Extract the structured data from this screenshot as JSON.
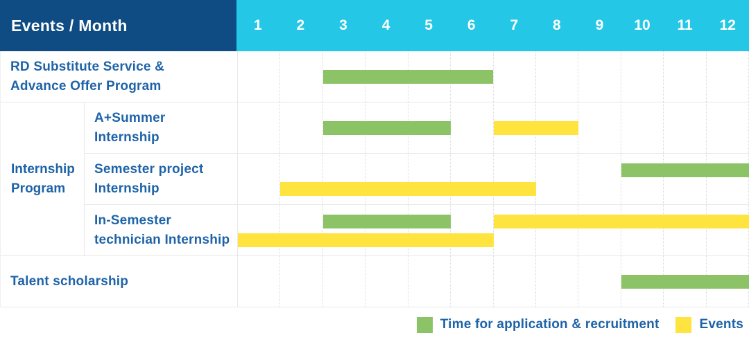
{
  "header": {
    "title": "Events / Month",
    "months": [
      "1",
      "2",
      "3",
      "4",
      "5",
      "6",
      "7",
      "8",
      "9",
      "10",
      "11",
      "12"
    ]
  },
  "rows": [
    {
      "id": "rd-substitute-advance-offer",
      "label_lines": [
        "RD Substitute Service &",
        "Advance Offer Program"
      ],
      "lines": 1,
      "bars": [
        {
          "color": "green",
          "start_month": 3,
          "end_month": 6,
          "track": 0
        }
      ]
    },
    {
      "id": "a-plus-summer-internship",
      "label_lines": [
        "A+Summer",
        "Internship"
      ],
      "lines": 1,
      "bars": [
        {
          "color": "green",
          "start_month": 3,
          "end_month": 5,
          "track": 0
        },
        {
          "color": "yellow",
          "start_month": 7,
          "end_month": 8,
          "track": 0
        }
      ]
    },
    {
      "id": "semester-project-internship",
      "label_lines": [
        "Semester project",
        "Internship"
      ],
      "lines": 2,
      "bars": [
        {
          "color": "green",
          "start_month": 10,
          "end_month": 12,
          "track": 0
        },
        {
          "color": "yellow",
          "start_month": 2,
          "end_month": 7,
          "track": 1
        }
      ]
    },
    {
      "id": "in-semester-technician-internship",
      "label_lines": [
        "In-Semester",
        "technician Internship"
      ],
      "lines": 2,
      "bars": [
        {
          "color": "green",
          "start_month": 3,
          "end_month": 5,
          "track": 0
        },
        {
          "color": "yellow",
          "start_month": 7,
          "end_month": 12,
          "track": 0
        },
        {
          "color": "yellow",
          "start_month": 1,
          "end_month": 6,
          "track": 1
        }
      ]
    },
    {
      "id": "talent-scholarship",
      "label_lines": [
        "Talent scholarship"
      ],
      "lines": 1,
      "bars": [
        {
          "color": "green",
          "start_month": 10,
          "end_month": 12,
          "track": 0
        }
      ]
    }
  ],
  "group": {
    "label_lines": [
      "Internship",
      "Program"
    ],
    "row_ids": [
      "a-plus-summer-internship",
      "semester-project-internship",
      "in-semester-technician-internship"
    ]
  },
  "legend": {
    "items": [
      {
        "label": "Time for application & recruitment",
        "color": "green"
      },
      {
        "label": "Events",
        "color": "yellow"
      }
    ]
  },
  "colors": {
    "navy": "#0F4C84",
    "cyan": "#25C7E6",
    "green": "#8CC366",
    "yellow": "#FFE33E",
    "label_blue": "#1E63A8",
    "grid": "#E8E8E8",
    "grid_dotted": "#D9D9D9"
  },
  "chart_data": {
    "type": "gantt",
    "title": "Events / Month",
    "x_axis": {
      "label": "Month",
      "ticks": [
        1,
        2,
        3,
        4,
        5,
        6,
        7,
        8,
        9,
        10,
        11,
        12
      ],
      "range": [
        1,
        12
      ]
    },
    "categories": [
      "RD Substitute Service & Advance Offer Program",
      "Internship Program / A+Summer Internship",
      "Internship Program / Semester project Internship",
      "Internship Program / In-Semester technician Internship",
      "Talent scholarship"
    ],
    "series": [
      {
        "name": "Time for application & recruitment",
        "color": "#8CC366",
        "spans": [
          {
            "category": "RD Substitute Service & Advance Offer Program",
            "start_month": 3,
            "end_month": 6
          },
          {
            "category": "Internship Program / A+Summer Internship",
            "start_month": 3,
            "end_month": 5
          },
          {
            "category": "Internship Program / Semester project Internship",
            "start_month": 10,
            "end_month": 12
          },
          {
            "category": "Internship Program / In-Semester technician Internship",
            "start_month": 3,
            "end_month": 5
          },
          {
            "category": "Talent scholarship",
            "start_month": 10,
            "end_month": 12
          }
        ]
      },
      {
        "name": "Events",
        "color": "#FFE33E",
        "spans": [
          {
            "category": "Internship Program / A+Summer Internship",
            "start_month": 7,
            "end_month": 8
          },
          {
            "category": "Internship Program / Semester project Internship",
            "start_month": 2,
            "end_month": 7
          },
          {
            "category": "Internship Program / In-Semester technician Internship",
            "start_month": 7,
            "end_month": 12
          },
          {
            "category": "Internship Program / In-Semester technician Internship",
            "start_month": 1,
            "end_month": 6
          }
        ]
      }
    ],
    "legend_position": "bottom-right",
    "grid": "dotted vertical month separators, solid horizontal row separators"
  }
}
